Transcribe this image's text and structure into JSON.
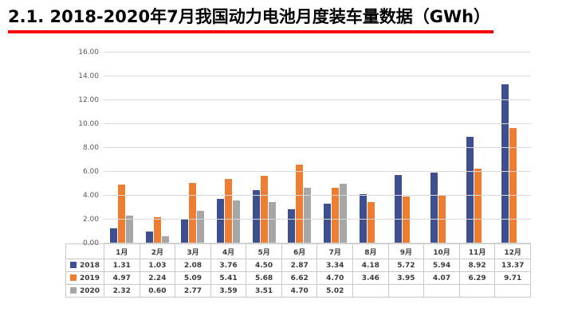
{
  "page": {
    "title": "2.1. 2018-2020年7月我国动力电池月度装车量数据（GWh）"
  },
  "chart_data": {
    "type": "bar",
    "title": "2018-2020年7月我国动力电池月度装车量数据（GWh）",
    "categories": [
      "1月",
      "2月",
      "3月",
      "4月",
      "5月",
      "6月",
      "7月",
      "8月",
      "9月",
      "10月",
      "11月",
      "12月"
    ],
    "series": [
      {
        "name": "2018",
        "color": "#3e4f8f",
        "values": [
          1.31,
          1.03,
          2.08,
          3.76,
          4.5,
          2.87,
          3.34,
          4.18,
          5.72,
          5.94,
          8.92,
          13.37
        ]
      },
      {
        "name": "2019",
        "color": "#ed7d31",
        "values": [
          4.97,
          2.24,
          5.09,
          5.41,
          5.68,
          6.62,
          4.7,
          3.46,
          3.95,
          4.07,
          6.29,
          9.71
        ]
      },
      {
        "name": "2020",
        "color": "#a6a6a6",
        "values": [
          2.32,
          0.6,
          2.77,
          3.59,
          3.51,
          4.7,
          5.02
        ]
      }
    ],
    "xlabel": "",
    "ylabel": "",
    "ylim": [
      0,
      16
    ],
    "ytick_step": 2,
    "ytick_format_decimals": 2,
    "grid": true,
    "legend_position": "table-left"
  }
}
